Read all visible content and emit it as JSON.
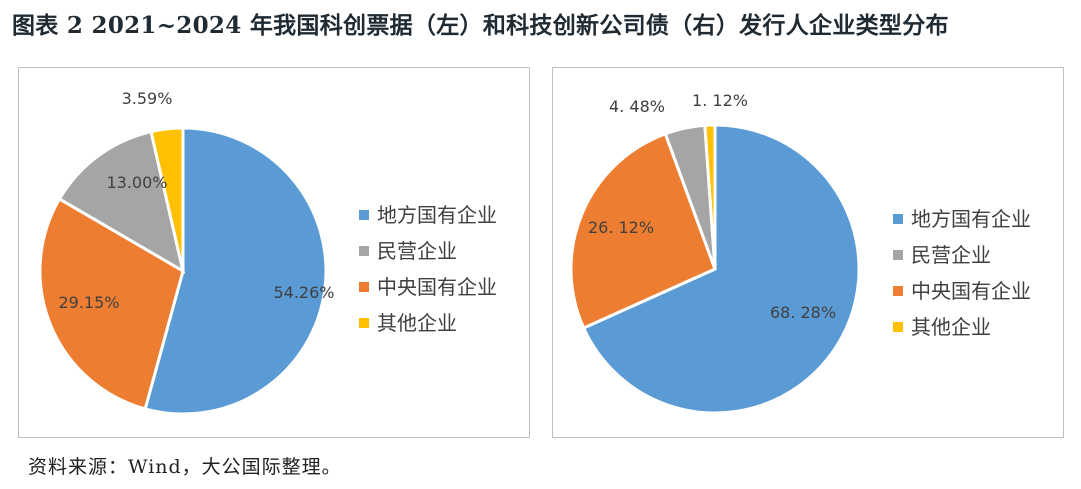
{
  "title": "图表 2  2021~2024 年我国科创票据（左）和科技创新公司债（右）发行人企业类型分布",
  "source": "资料来源：Wind，大公国际整理。",
  "chart_data": [
    {
      "type": "pie",
      "categories": [
        "地方国有企业",
        "中央国有企业",
        "民营企业",
        "其他企业"
      ],
      "values": [
        54.26,
        29.15,
        13.0,
        3.59
      ],
      "labels": [
        "54.26%",
        "29.15%",
        "13.00%",
        "3.59%"
      ],
      "colors": [
        "#5b9bd5",
        "#ed7d31",
        "#a5a5a5",
        "#ffc000"
      ],
      "legend": {
        "position": "right",
        "items": [
          {
            "label": "地方国有企业",
            "color": "#5b9bd5"
          },
          {
            "label": "民营企业",
            "color": "#a5a5a5"
          },
          {
            "label": "中央国有企业",
            "color": "#ed7d31"
          },
          {
            "label": "其他企业",
            "color": "#ffc000"
          }
        ]
      }
    },
    {
      "type": "pie",
      "categories": [
        "地方国有企业",
        "中央国有企业",
        "民营企业",
        "其他企业"
      ],
      "values": [
        68.28,
        26.12,
        4.48,
        1.12
      ],
      "labels": [
        "68. 28%",
        "26. 12%",
        "4. 48%",
        "1. 12%"
      ],
      "colors": [
        "#5b9bd5",
        "#ed7d31",
        "#a5a5a5",
        "#ffc000"
      ],
      "legend": {
        "position": "right",
        "items": [
          {
            "label": "地方国有企业",
            "color": "#5b9bd5"
          },
          {
            "label": "民营企业",
            "color": "#a5a5a5"
          },
          {
            "label": "中央国有企业",
            "color": "#ed7d31"
          },
          {
            "label": "其他企业",
            "color": "#ffc000"
          }
        ]
      }
    }
  ]
}
